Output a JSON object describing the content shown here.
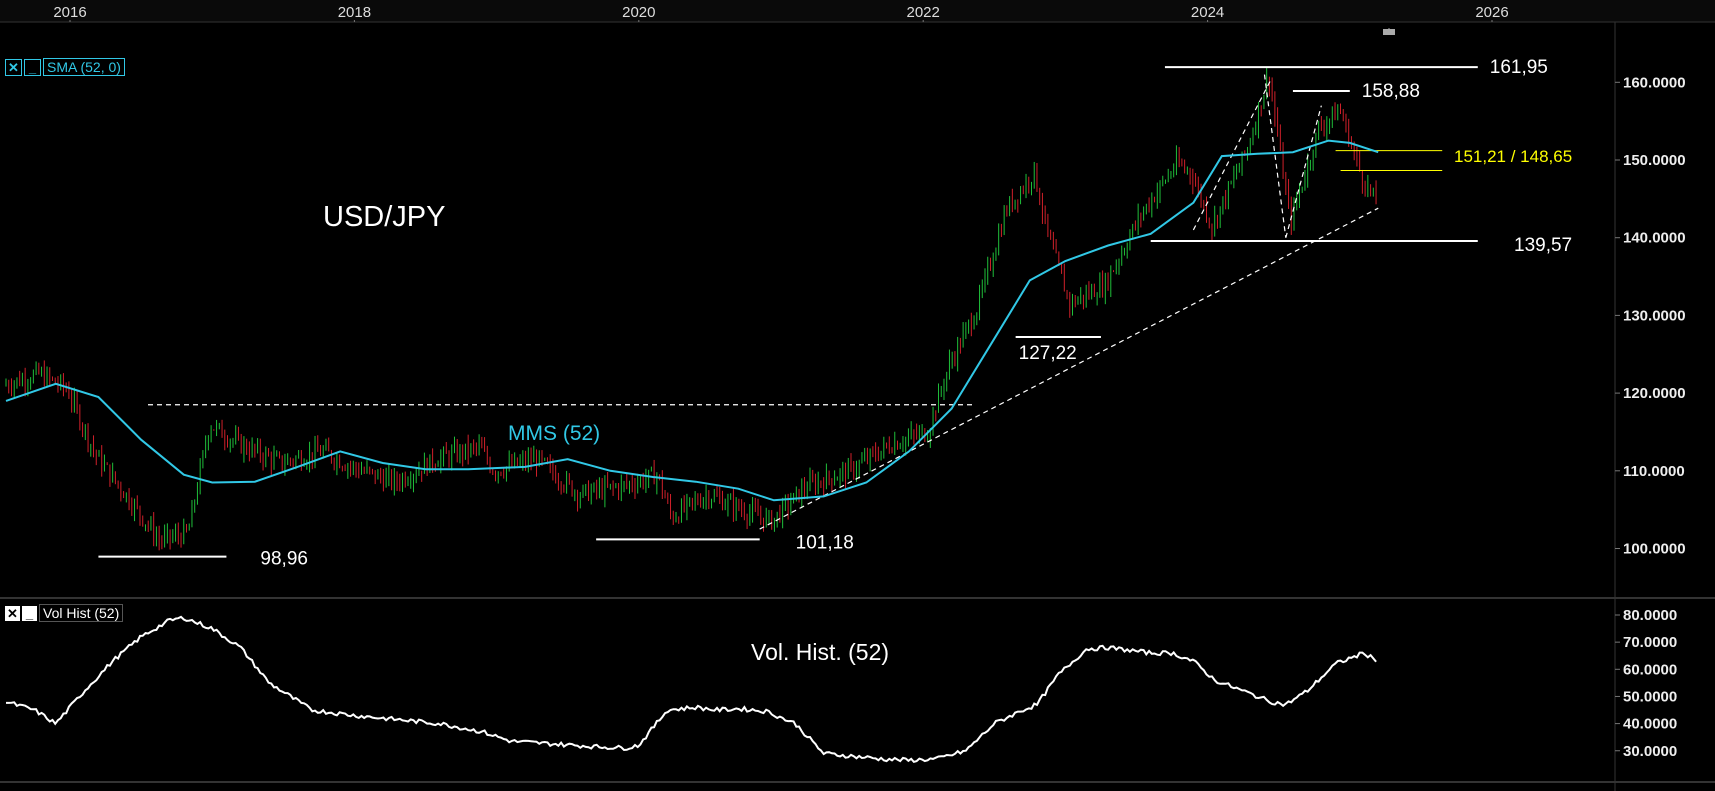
{
  "instrument": "USD/JPY",
  "main_panel": {
    "indicator_tag": "SMA (52, 0)",
    "close_icon": "✕",
    "minimize_icon": "_",
    "sma_label": "MMS (52)",
    "sma_color": "#31c8e6",
    "up_color": "#1fbf3a",
    "down_color": "#d0202a",
    "x_ticks": [
      "2016",
      "2018",
      "2020",
      "2022",
      "2024",
      "2026"
    ],
    "y_ticks": [
      "100.0000",
      "110.0000",
      "120.0000",
      "130.0000",
      "140.0000",
      "150.0000",
      "160.0000"
    ],
    "levels": [
      {
        "value": "161,95",
        "price": 161.95,
        "x_from": 2023.7,
        "x_to": 2025.9
      },
      {
        "value": "158,88",
        "price": 158.88,
        "x_from": 2024.6,
        "x_to": 2025.0
      },
      {
        "value": "139,57",
        "price": 139.57,
        "x_from": 2023.6,
        "x_to": 2025.9
      },
      {
        "value": "127,22",
        "price": 127.22,
        "x_from": 2022.65,
        "x_to": 2023.25
      },
      {
        "value": "101,18",
        "price": 101.18,
        "x_from": 2019.7,
        "x_to": 2020.85
      },
      {
        "value": "98,96",
        "price": 98.96,
        "x_from": 2016.2,
        "x_to": 2017.1
      }
    ],
    "highlight_label": "151,21 / 148,65",
    "highlight_color": "#ffff00",
    "highlight_levels": [
      151.21,
      148.65
    ]
  },
  "vol_panel": {
    "indicator_tag": "Vol Hist (52)",
    "close_icon": "✕",
    "minimize_icon": "_",
    "title": "Vol. Hist. (52)",
    "y_ticks": [
      "30.0000",
      "40.0000",
      "50.0000",
      "60.0000",
      "70.0000",
      "80.0000"
    ]
  },
  "chart_data": [
    {
      "type": "line",
      "title": "USD/JPY",
      "x_unit": "year",
      "ylim": [
        96,
        166
      ],
      "xlim": [
        2015.55,
        2026.95
      ],
      "series": [
        {
          "name": "MMS (52)",
          "x": [
            2015.55,
            2015.9,
            2016.2,
            2016.5,
            2016.8,
            2017.0,
            2017.3,
            2017.6,
            2017.9,
            2018.2,
            2018.5,
            2018.8,
            2019.2,
            2019.5,
            2019.8,
            2020.1,
            2020.4,
            2020.7,
            2020.95,
            2021.3,
            2021.6,
            2021.9,
            2022.2,
            2022.5,
            2022.75,
            2023.0,
            2023.3,
            2023.6,
            2023.9,
            2024.1,
            2024.35,
            2024.6,
            2024.85,
            2025.0,
            2025.2
          ],
          "values": [
            119.0,
            121.2,
            119.5,
            114.0,
            109.5,
            108.5,
            108.6,
            110.5,
            112.5,
            111.0,
            110.2,
            110.2,
            110.5,
            111.5,
            110.0,
            109.2,
            108.6,
            107.7,
            106.2,
            106.7,
            108.5,
            112.5,
            118.0,
            127.0,
            134.5,
            137.0,
            139.0,
            140.5,
            144.5,
            150.5,
            150.8,
            151.0,
            152.5,
            152.2,
            151.0
          ]
        },
        {
          "name": "price",
          "x": [
            2015.55,
            2015.8,
            2016.0,
            2016.2,
            2016.45,
            2016.65,
            2016.85,
            2017.0,
            2017.2,
            2017.5,
            2017.8,
            2018.0,
            2018.3,
            2018.6,
            2018.9,
            2019.0,
            2019.3,
            2019.6,
            2019.9,
            2020.15,
            2020.25,
            2020.5,
            2020.75,
            2020.95,
            2021.2,
            2021.5,
            2021.8,
            2022.05,
            2022.2,
            2022.4,
            2022.6,
            2022.8,
            2022.9,
            2023.05,
            2023.3,
            2023.55,
            2023.8,
            2023.9,
            2024.05,
            2024.3,
            2024.45,
            2024.6,
            2024.8,
            2024.95,
            2025.1,
            2025.2
          ],
          "values": [
            121.0,
            122.5,
            120.5,
            112.0,
            106.0,
            101.0,
            102.0,
            116.0,
            113.5,
            111.0,
            112.5,
            110.5,
            108.5,
            111.5,
            113.0,
            110.0,
            111.5,
            107.0,
            108.0,
            109.5,
            104.0,
            107.0,
            105.0,
            103.5,
            108.0,
            110.0,
            113.5,
            115.0,
            123.5,
            131.0,
            143.5,
            148.5,
            140.0,
            131.5,
            134.0,
            143.0,
            149.5,
            148.5,
            141.5,
            151.5,
            161.0,
            142.0,
            154.0,
            156.5,
            148.0,
            144.5
          ]
        }
      ],
      "annotations": [
        "USD/JPY",
        "MMS (52)",
        "161,95",
        "158,88",
        "151,21 / 148,65",
        "139,57",
        "127,22",
        "101,18",
        "98,96"
      ]
    },
    {
      "type": "line",
      "title": "Vol. Hist. (52)",
      "ylim": [
        24,
        82
      ],
      "series": [
        {
          "name": "Vol Hist (52)",
          "x": [
            2015.55,
            2015.75,
            2015.9,
            2016.1,
            2016.3,
            2016.5,
            2016.7,
            2016.8,
            2017.0,
            2017.2,
            2017.4,
            2017.7,
            2018.0,
            2018.3,
            2018.6,
            2018.9,
            2019.1,
            2019.4,
            2019.7,
            2019.9,
            2020.0,
            2020.2,
            2020.4,
            2020.55,
            2020.7,
            2020.9,
            2021.1,
            2021.3,
            2021.5,
            2021.7,
            2021.9,
            2022.1,
            2022.3,
            2022.5,
            2022.7,
            2022.8,
            2022.95,
            2023.15,
            2023.3,
            2023.6,
            2023.75,
            2023.9,
            2024.05,
            2024.3,
            2024.45,
            2024.55,
            2024.7,
            2024.9,
            2025.1,
            2025.2
          ],
          "values": [
            48.0,
            45.0,
            40.0,
            52.0,
            63.0,
            72.0,
            78.0,
            79.0,
            75.0,
            68.0,
            55.0,
            45.0,
            43.0,
            41.5,
            40.0,
            37.0,
            33.5,
            32.5,
            31.5,
            31.0,
            32.0,
            45.0,
            46.0,
            45.0,
            45.5,
            44.5,
            40.0,
            29.0,
            28.0,
            27.0,
            26.5,
            27.0,
            30.0,
            40.0,
            45.0,
            47.0,
            58.0,
            67.5,
            68.0,
            66.0,
            66.0,
            63.0,
            56.0,
            51.0,
            48.0,
            47.0,
            52.0,
            62.0,
            66.0,
            63.0
          ]
        }
      ]
    }
  ]
}
